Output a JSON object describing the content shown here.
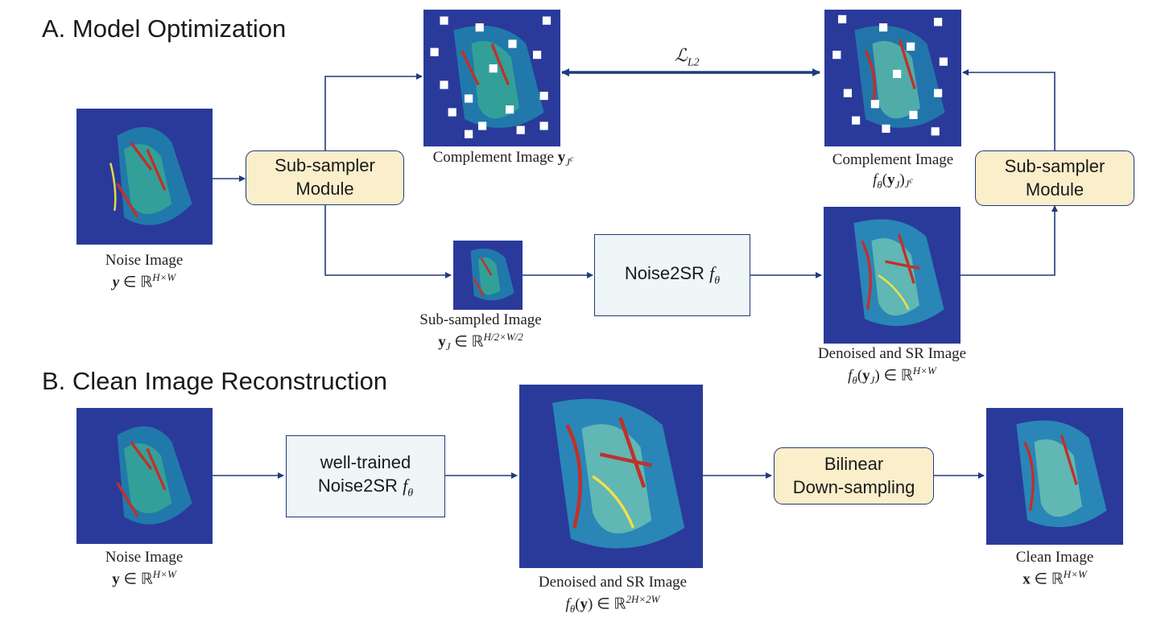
{
  "section_a": {
    "heading": "A. Model Optimization"
  },
  "section_b": {
    "heading": "B. Clean Image Reconstruction"
  },
  "boxes": {
    "subsampler_left": [
      "Sub-sampler",
      "Module"
    ],
    "subsampler_right": [
      "Sub-sampler",
      "Module"
    ],
    "noise2sr": "Noise2SR",
    "well_trained": [
      "well-trained",
      "Noise2SR"
    ],
    "bilinear": [
      "Bilinear",
      "Down-sampling"
    ]
  },
  "loss_label": "ℒ",
  "loss_sub": "L2",
  "captions": {
    "a_noise": {
      "line1": "Noise Image",
      "sym": "y",
      "rel": "∈ ℝ",
      "sup": "H×W"
    },
    "complement_left": {
      "line1": "Complement Image",
      "sym": "y",
      "sub": "J",
      "subsup": "c"
    },
    "complement_right": {
      "line1": "Complement Image"
    },
    "subsampled": {
      "line1": "Sub-sampled Image"
    },
    "denoised_a": {
      "line1": "Denoised and SR Image"
    },
    "b_noise": {
      "line1": "Noise Image"
    },
    "denoised_b": {
      "line1": "Denoised and SR Image"
    },
    "clean": {
      "line1": "Clean Image"
    }
  },
  "colors": {
    "arrow": "#1f3b7a",
    "yellow_box": "#fbeecb",
    "blue_box": "#eef6f8",
    "image_bg": "#2a3a9a"
  }
}
